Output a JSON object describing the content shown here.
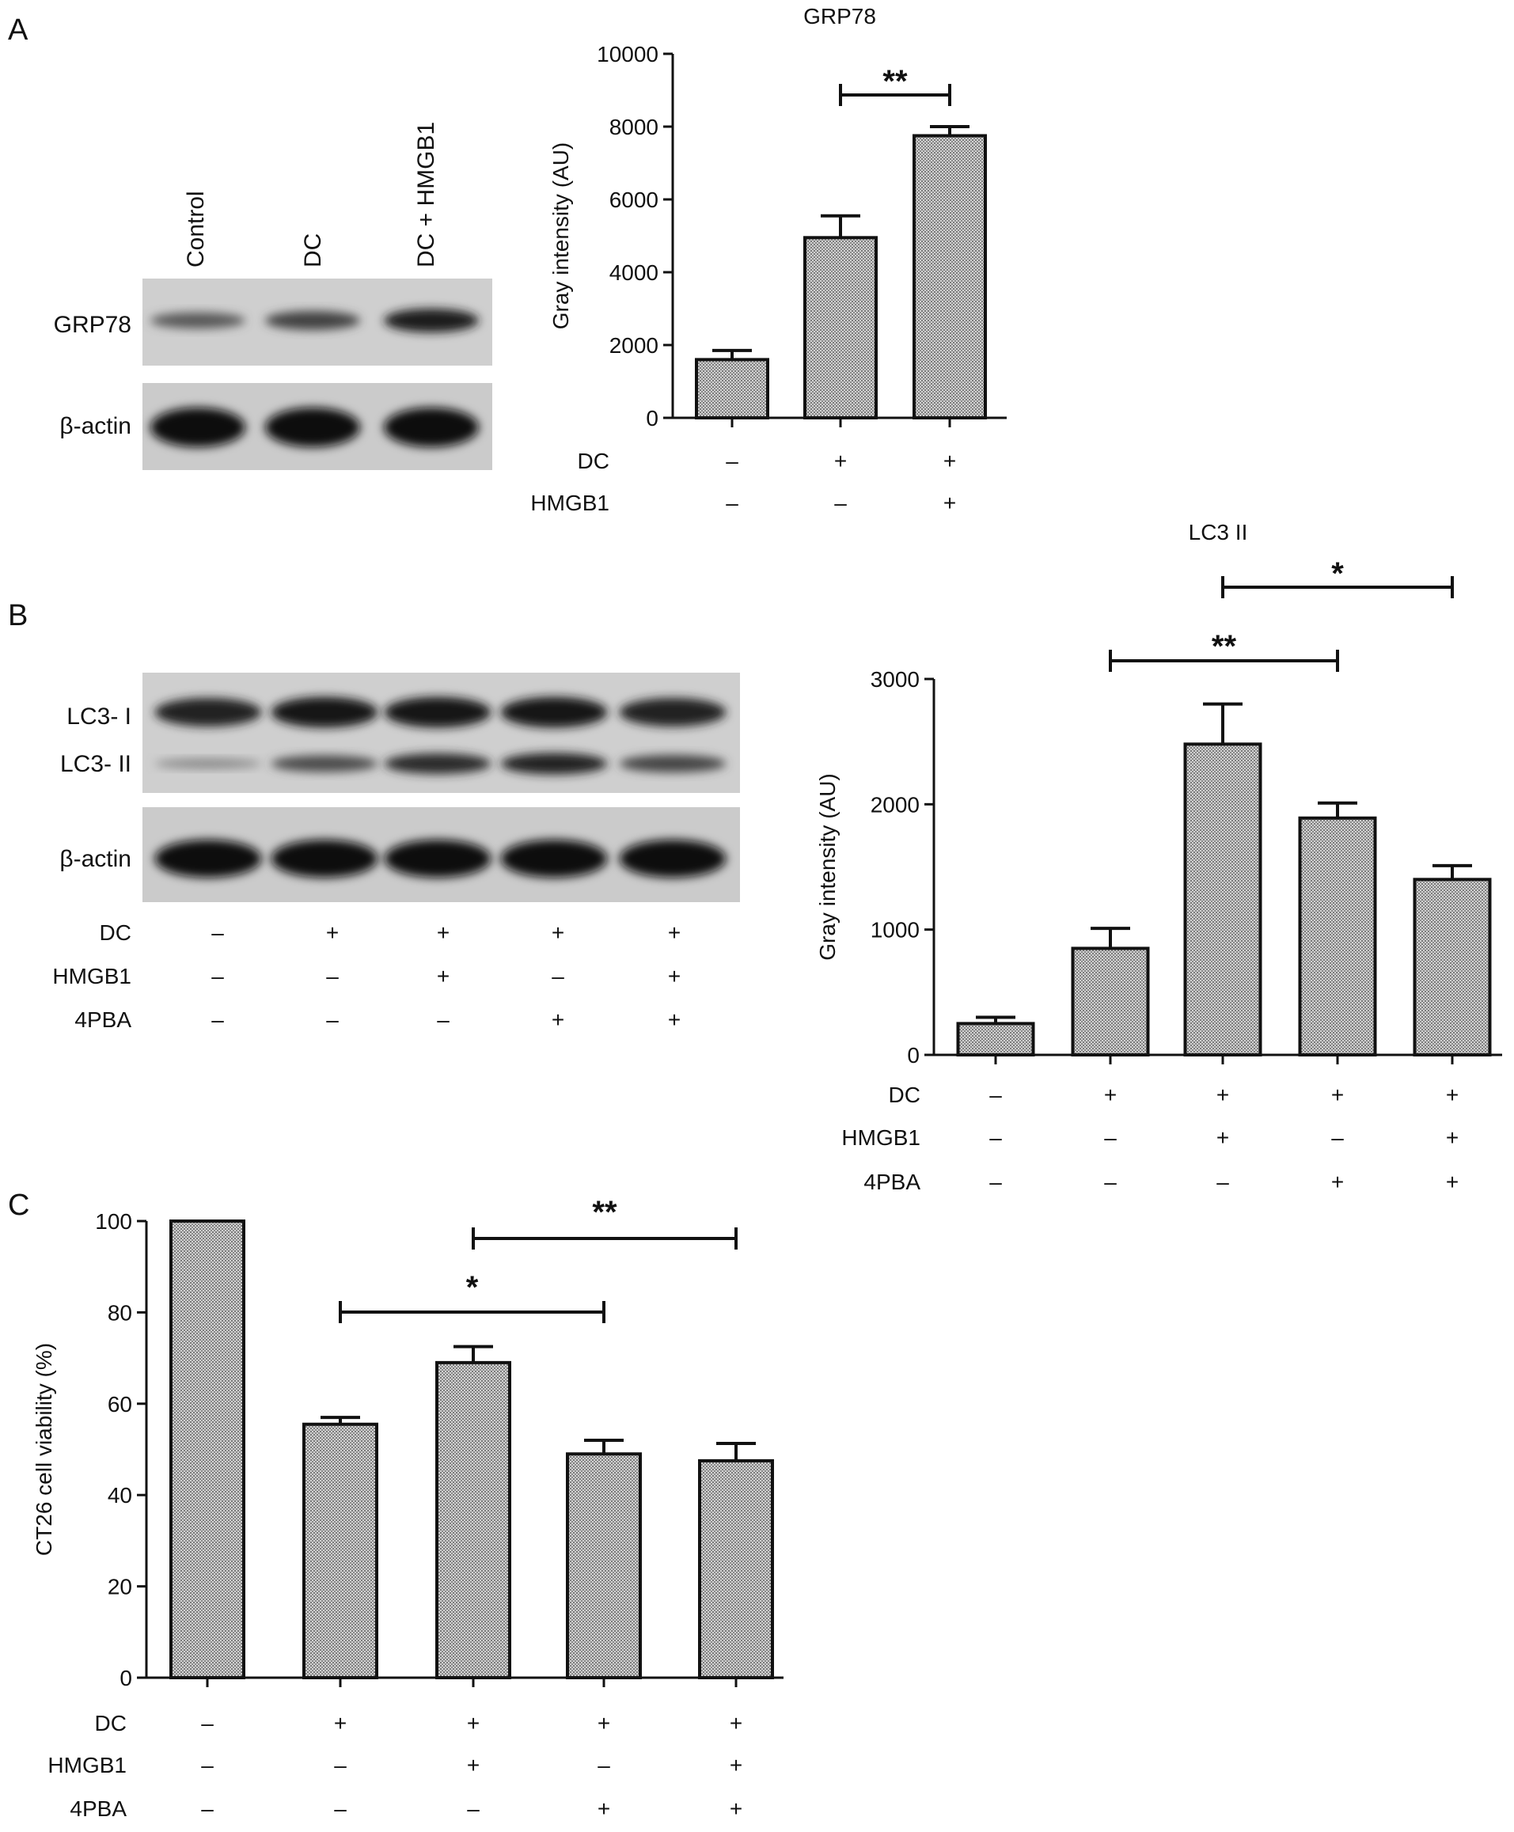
{
  "panels": [
    {
      "letter": "A"
    },
    {
      "letter": "B"
    },
    {
      "letter": "C"
    }
  ],
  "blots": [
    {
      "lanes": [
        "Control",
        "DC",
        "DC + HMGB1"
      ],
      "rows": [
        {
          "label": "GRP78",
          "intensity": [
            0.45,
            0.62,
            0.9
          ]
        },
        {
          "label": "β-actin",
          "intensity": [
            1.0,
            1.0,
            1.0
          ]
        }
      ]
    },
    {
      "rows": [
        {
          "label": "LC3- I",
          "intensity": [
            0.85,
            0.95,
            0.95,
            0.95,
            0.85
          ]
        },
        {
          "label": "LC3- II",
          "intensity": [
            0.1,
            0.55,
            0.8,
            0.85,
            0.6
          ]
        },
        {
          "label": "β-actin",
          "intensity": [
            1.0,
            1.0,
            1.0,
            1.0,
            1.0
          ]
        }
      ],
      "conditions": [
        {
          "label": "DC",
          "values": [
            "–",
            "+",
            "+",
            "+",
            "+"
          ]
        },
        {
          "label": "HMGB1",
          "values": [
            "–",
            "–",
            "+",
            "–",
            "+"
          ]
        },
        {
          "label": "4PBA",
          "values": [
            "–",
            "–",
            "–",
            "+",
            "+"
          ]
        }
      ]
    }
  ],
  "chart_data": [
    {
      "type": "bar",
      "title": "GRP78",
      "ylabel": "Gray intensity (AU)",
      "ylim": [
        0,
        10000
      ],
      "yticks": [
        0,
        2000,
        4000,
        6000,
        8000,
        10000
      ],
      "values": [
        1600,
        4950,
        7750
      ],
      "errors": [
        250,
        600,
        250
      ],
      "conditions": [
        {
          "label": "DC",
          "values": [
            "–",
            "+",
            "+"
          ]
        },
        {
          "label": "HMGB1",
          "values": [
            "–",
            "–",
            "+"
          ]
        }
      ],
      "significance": [
        {
          "from": 1,
          "to": 2,
          "label": "**"
        }
      ]
    },
    {
      "type": "bar",
      "title": "LC3 II",
      "ylabel": "Gray intensity (AU)",
      "ylim": [
        0,
        3000
      ],
      "yticks": [
        0,
        1000,
        2000,
        3000
      ],
      "values": [
        250,
        850,
        2480,
        1890,
        1400
      ],
      "errors": [
        50,
        160,
        320,
        120,
        110
      ],
      "conditions": [
        {
          "label": "DC",
          "values": [
            "–",
            "+",
            "+",
            "+",
            "+"
          ]
        },
        {
          "label": "HMGB1",
          "values": [
            "–",
            "–",
            "+",
            "–",
            "+"
          ]
        },
        {
          "label": "4PBA",
          "values": [
            "–",
            "–",
            "–",
            "+",
            "+"
          ]
        }
      ],
      "significance": [
        {
          "from": 1,
          "to": 3,
          "label": "**"
        },
        {
          "from": 2,
          "to": 4,
          "label": "*"
        }
      ]
    },
    {
      "type": "bar",
      "title": "",
      "ylabel": "CT26 cell viability (%)",
      "ylim": [
        0,
        100
      ],
      "yticks": [
        0,
        20,
        40,
        60,
        80,
        100
      ],
      "values": [
        100,
        55.5,
        69,
        49,
        47.5
      ],
      "errors": [
        0,
        1.5,
        3.5,
        3,
        3.8
      ],
      "conditions": [
        {
          "label": "DC",
          "values": [
            "–",
            "+",
            "+",
            "+",
            "+"
          ]
        },
        {
          "label": "HMGB1",
          "values": [
            "–",
            "–",
            "+",
            "–",
            "+"
          ]
        },
        {
          "label": "4PBA",
          "values": [
            "–",
            "–",
            "–",
            "+",
            "+"
          ]
        }
      ],
      "significance": [
        {
          "from": 1,
          "to": 3,
          "label": "*"
        },
        {
          "from": 2,
          "to": 4,
          "label": "**"
        }
      ]
    }
  ]
}
